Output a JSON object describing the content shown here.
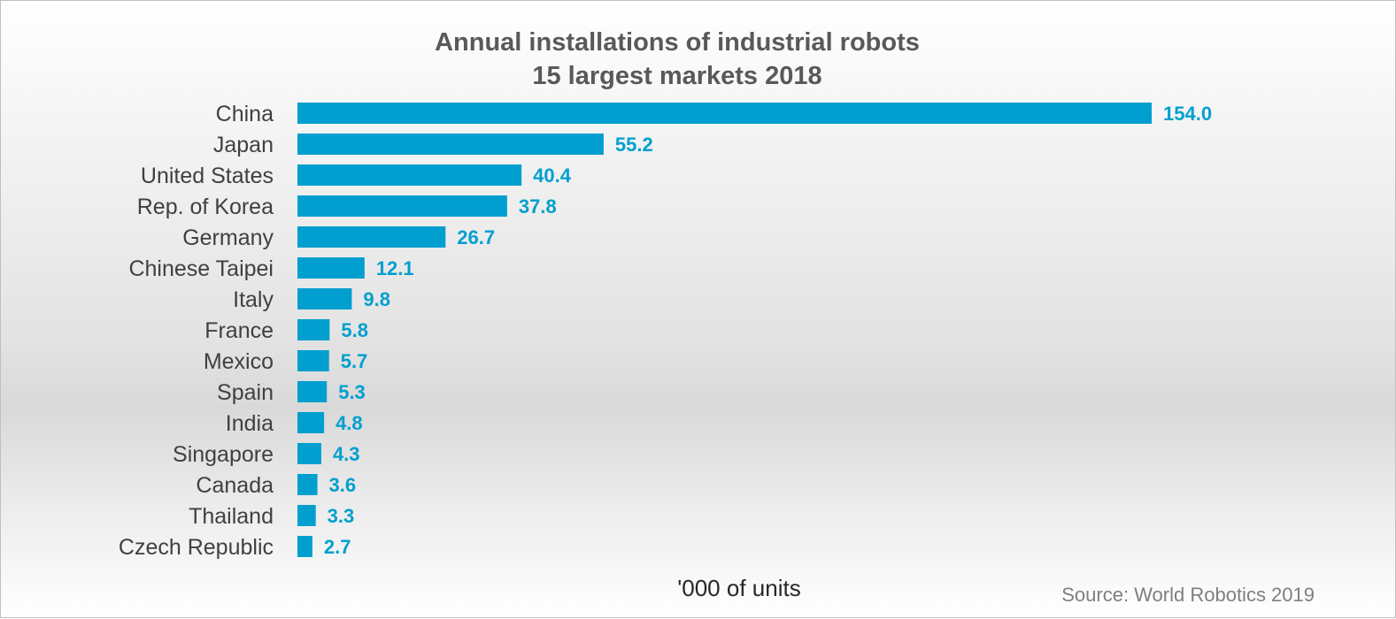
{
  "chart_data": {
    "type": "bar",
    "orientation": "horizontal",
    "title": [
      "Annual installations of industrial robots",
      "15 largest markets 2018"
    ],
    "xlabel": "'000 of units",
    "ylabel": "",
    "source": "Source: World Robotics 2019",
    "categories": [
      "China",
      "Japan",
      "United States",
      "Rep. of Korea",
      "Germany",
      "Chinese Taipei",
      "Italy",
      "France",
      "Mexico",
      "Spain",
      "India",
      "Singapore",
      "Canada",
      "Thailand",
      "Czech Republic"
    ],
    "values": [
      154.0,
      55.2,
      40.4,
      37.8,
      26.7,
      12.1,
      9.8,
      5.8,
      5.7,
      5.3,
      4.8,
      4.3,
      3.6,
      3.3,
      2.7
    ],
    "value_labels": [
      "154.0",
      "55.2",
      "40.4",
      "37.8",
      "26.7",
      "12.1",
      "9.8",
      "5.8",
      "5.7",
      "5.3",
      "4.8",
      "4.3",
      "3.6",
      "3.3",
      "2.7"
    ],
    "xlim": [
      0,
      154
    ],
    "grid": false,
    "legend": "none",
    "bar_color": "#009fcf",
    "label_color": "#009fcf"
  }
}
